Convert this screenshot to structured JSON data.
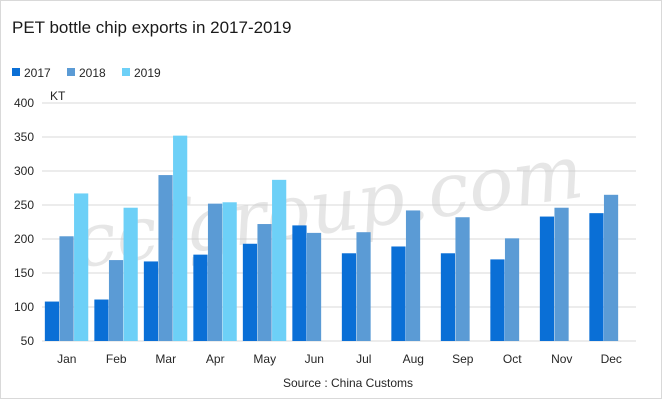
{
  "chart_data": {
    "type": "bar",
    "title": "PET bottle chip exports in 2017-2019",
    "unit": "KT",
    "source": "Source : China Customs",
    "watermark": "ccfgroup.com",
    "categories": [
      "Jan",
      "Feb",
      "Mar",
      "Apr",
      "May",
      "Jun",
      "Jul",
      "Aug",
      "Sep",
      "Oct",
      "Nov",
      "Dec"
    ],
    "series": [
      {
        "name": "2017",
        "color": "#0a6fd6",
        "values": [
          108,
          111,
          167,
          177,
          193,
          220,
          179,
          189,
          179,
          170,
          233,
          238
        ]
      },
      {
        "name": "2018",
        "color": "#5b9bd5",
        "values": [
          204,
          169,
          294,
          252,
          222,
          209,
          210,
          242,
          232,
          201,
          246,
          265
        ]
      },
      {
        "name": "2019",
        "color": "#6dd0f7",
        "values": [
          267,
          246,
          352,
          254,
          287,
          null,
          null,
          null,
          null,
          null,
          null,
          null
        ]
      }
    ],
    "ylim": [
      50,
      400
    ],
    "yticks": [
      50,
      100,
      150,
      200,
      250,
      300,
      350,
      400
    ],
    "grid": true,
    "legend_position": "top-left"
  }
}
